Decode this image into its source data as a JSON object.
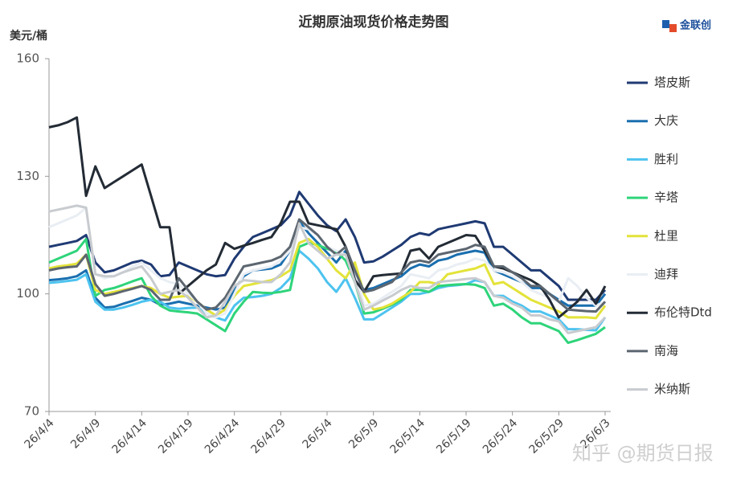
{
  "chart_data": {
    "type": "line",
    "title": "近期原油现货价格走势图",
    "y_label": "美元/桶",
    "logo": "金联创",
    "watermark": "知乎 @期货日报",
    "categories": [
      "26/4/4",
      null,
      null,
      null,
      null,
      "26/4/9",
      null,
      null,
      null,
      null,
      "26/4/14",
      null,
      null,
      null,
      null,
      "26/4/19",
      null,
      null,
      null,
      null,
      "26/4/24",
      null,
      null,
      null,
      null,
      "26/4/29",
      null,
      null,
      null,
      null,
      "26/5/4",
      null,
      null,
      null,
      null,
      "26/5/9",
      null,
      null,
      null,
      null,
      "26/5/14",
      null,
      null,
      null,
      null,
      "26/5/19",
      null,
      null,
      null,
      null,
      "26/5/24",
      null,
      null,
      null,
      null,
      "26/5/29",
      null,
      null,
      null,
      null,
      "26/6/3"
    ],
    "ylim": [
      70,
      160
    ],
    "yticks": [
      70,
      100,
      130,
      160
    ],
    "grid": false,
    "legend": "right",
    "series": [
      {
        "name": "塔皮斯",
        "color": "#1f3a73",
        "values": [
          112,
          112.5,
          113,
          113.5,
          115,
          108,
          105.5,
          106,
          107,
          108,
          108.5,
          107.5,
          104.5,
          104.8,
          108,
          107,
          106,
          105,
          104.5,
          104.8,
          109,
          112,
          114.5,
          115.5,
          116.5,
          117.5,
          120,
          126,
          123,
          120,
          117.5,
          116,
          119,
          114.5,
          108,
          108.3,
          109.5,
          111,
          112.5,
          114.5,
          115.5,
          115,
          116.5,
          117,
          117.5,
          118,
          118.5,
          118,
          112,
          112,
          110,
          108,
          106,
          106,
          104,
          102,
          98.5,
          98.5,
          98.5,
          98.5,
          101
        ]
      },
      {
        "name": "大庆",
        "color": "#1a6faf",
        "values": [
          103.5,
          103.7,
          104,
          104.5,
          106,
          99,
          96.5,
          96.7,
          97.5,
          98.2,
          99,
          98.5,
          97.2,
          97.5,
          98,
          97.5,
          97,
          96.5,
          96,
          96.5,
          101,
          104.5,
          106,
          106.2,
          106.5,
          107.5,
          111,
          118.5,
          115.5,
          113,
          110.5,
          108,
          111,
          104,
          101,
          101.5,
          102.5,
          103.5,
          104.5,
          106.5,
          107.5,
          107,
          108.5,
          109,
          110,
          110.5,
          111,
          110.5,
          106,
          105,
          104,
          103,
          101.5,
          101.5,
          100,
          98.5,
          97,
          97,
          97,
          97,
          100
        ]
      },
      {
        "name": "胜利",
        "color": "#4dc3ef",
        "values": [
          102.8,
          103,
          103.3,
          103.6,
          105,
          98,
          96,
          96,
          96.5,
          97.2,
          98,
          98.5,
          98,
          96.5,
          96.2,
          96.4,
          96.5,
          95,
          94,
          93.2,
          97,
          99,
          99.2,
          99.5,
          100,
          101.5,
          104,
          111,
          109,
          106.5,
          103,
          100.5,
          104,
          99,
          93.5,
          93.5,
          95,
          96.5,
          98,
          100,
          100,
          100.5,
          101.5,
          102,
          102.2,
          102.5,
          103.5,
          103,
          99.5,
          99.5,
          98,
          97,
          95.5,
          95.5,
          94.5,
          93.5,
          91,
          91,
          90.8,
          90.7,
          94
        ]
      },
      {
        "name": "辛塔",
        "color": "#2ed47a",
        "values": [
          108,
          109,
          110,
          111,
          114,
          99.5,
          101,
          101.5,
          102.3,
          103.2,
          104,
          99.5,
          97,
          95.8,
          95.5,
          95.3,
          95,
          93.5,
          92,
          90.5,
          95,
          98,
          100.5,
          100.3,
          100.2,
          100.5,
          101,
          112,
          113,
          112.5,
          111.5,
          110.8,
          108.5,
          103,
          95,
          95.3,
          96.2,
          97.2,
          98.5,
          101,
          101,
          100.5,
          102,
          102.2,
          102.4,
          102.5,
          102.3,
          101.5,
          97,
          97.5,
          96,
          94,
          92.5,
          92.5,
          91.5,
          90.5,
          87.5,
          88.2,
          89,
          89.8,
          91.5
        ]
      },
      {
        "name": "杜里",
        "color": "#e3e33a",
        "values": [
          106.5,
          107,
          107.3,
          107.7,
          110,
          101,
          100,
          100.5,
          101,
          101.5,
          102,
          101.5,
          100,
          99,
          99.3,
          99.5,
          98,
          96,
          94.5,
          96,
          99.5,
          102,
          102.5,
          103,
          103.5,
          104.5,
          106,
          113,
          114,
          112,
          109,
          106,
          104,
          108,
          100,
          96,
          96.5,
          97.5,
          99,
          100.5,
          103,
          103,
          102.5,
          105,
          105.5,
          106,
          106.5,
          107.5,
          102.5,
          103,
          101.5,
          100,
          98.5,
          97.5,
          96.5,
          95.5,
          94,
          94,
          94,
          93.8,
          97
        ]
      },
      {
        "name": "迪拜",
        "color": "#e9eef4",
        "values": [
          117,
          118,
          119,
          120,
          122,
          105,
          104,
          104.5,
          105.5,
          107,
          108,
          106,
          104,
          103,
          102.5,
          100,
          98,
          95,
          94,
          95,
          100,
          105,
          106,
          106.5,
          107,
          108.5,
          111,
          117,
          116.5,
          115,
          112,
          111,
          110,
          106,
          97,
          97.5,
          99,
          100.5,
          102,
          105,
          104.5,
          104,
          106,
          106.5,
          107.5,
          108,
          109,
          108.5,
          106,
          105.5,
          104.5,
          103,
          101,
          100,
          99,
          98,
          104,
          102,
          99,
          97,
          98
        ]
      },
      {
        "name": "布伦特Dtd",
        "color": "#232b35",
        "values": [
          142.5,
          143,
          143.8,
          145,
          125,
          132.5,
          127,
          128.5,
          130,
          131.5,
          133,
          125,
          117,
          117,
          100,
          102,
          104,
          106,
          107.5,
          113,
          111.5,
          112.3,
          113,
          113.8,
          114.5,
          118,
          123.5,
          123.5,
          118,
          117.5,
          117,
          116.5,
          112,
          103.5,
          100.5,
          104.5,
          104.8,
          105,
          105.2,
          111,
          111.5,
          109,
          112,
          113,
          114,
          115,
          114.8,
          111,
          107,
          106.5,
          105.5,
          104.5,
          103.5,
          102,
          98.5,
          94,
          96,
          98,
          101,
          97.5,
          102
        ]
      },
      {
        "name": "南海",
        "color": "#5c6670",
        "values": [
          106,
          106.5,
          106.8,
          107,
          110,
          102.5,
          99.5,
          100,
          100.7,
          101.3,
          102,
          101,
          98.5,
          98.5,
          104,
          101,
          98,
          96,
          96.5,
          99,
          103,
          107,
          107.5,
          108,
          108.5,
          109.5,
          112,
          119,
          117,
          115,
          112,
          110,
          112,
          106,
          100.5,
          101,
          102,
          103,
          105.5,
          108,
          108.5,
          108,
          110,
          110.5,
          111,
          111.5,
          112.5,
          112,
          107,
          107,
          105.5,
          104,
          102,
          102,
          100,
          98,
          96,
          95.8,
          95.6,
          95.5,
          98
        ]
      },
      {
        "name": "米纳斯",
        "color": "#c8cbcf",
        "values": [
          121,
          121.5,
          122,
          122.5,
          122,
          105,
          104.5,
          104.5,
          105.5,
          106.3,
          107,
          104,
          100,
          100.5,
          101,
          99,
          96.5,
          94,
          94.5,
          98,
          102,
          103.5,
          103.3,
          103,
          103,
          105,
          108,
          118,
          113,
          111,
          109,
          110,
          110,
          103,
          96,
          97,
          98.3,
          99.5,
          101,
          102,
          101.5,
          101.5,
          103,
          103.3,
          103.5,
          103.8,
          104,
          103,
          99.5,
          99,
          97.5,
          96.5,
          94.5,
          94.5,
          93.5,
          93,
          90,
          90.5,
          91,
          91.5,
          94
        ]
      }
    ]
  }
}
